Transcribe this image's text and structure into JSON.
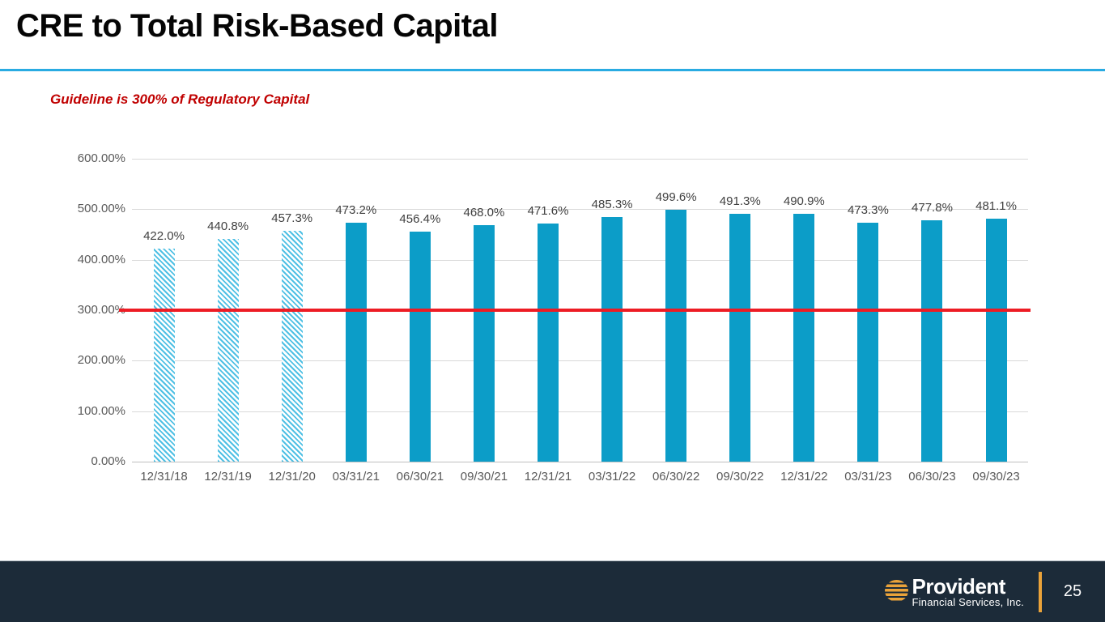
{
  "slide": {
    "title": "CRE to Total Risk-Based Capital",
    "guideline_note": "Guideline is 300% of Regulatory Capital",
    "page_number": "25"
  },
  "footer": {
    "logo_name": "Provident",
    "logo_subtitle": "Financial Services, Inc.",
    "bar_color": "#1c2b39",
    "accent_gold": "#eaa33a"
  },
  "chart_data": {
    "type": "bar",
    "title": "",
    "xlabel": "",
    "ylabel": "",
    "categories": [
      "12/31/18",
      "12/31/19",
      "12/31/20",
      "03/31/21",
      "06/30/21",
      "09/30/21",
      "12/31/21",
      "03/31/22",
      "06/30/22",
      "09/30/22",
      "12/31/22",
      "03/31/23",
      "06/30/23",
      "09/30/23"
    ],
    "values": [
      422.0,
      440.8,
      457.3,
      473.2,
      456.4,
      468.0,
      471.6,
      485.3,
      499.6,
      491.3,
      490.9,
      473.3,
      477.8,
      481.1
    ],
    "value_labels": [
      "422.0%",
      "440.8%",
      "457.3%",
      "473.2%",
      "456.4%",
      "468.0%",
      "471.6%",
      "485.3%",
      "499.6%",
      "491.3%",
      "490.9%",
      "473.3%",
      "477.8%",
      "481.1%"
    ],
    "y_ticks": [
      "600.00%",
      "500.00%",
      "400.00%",
      "300.00%",
      "200.00%",
      "100.00%",
      "0.00%"
    ],
    "ylim": [
      0,
      600
    ],
    "grid": true,
    "legend": false,
    "hatched_bar_count": 3,
    "guideline_value": 300,
    "bar_color": "#0c9dc8",
    "hatch_stripe_color": "#4fc0e4",
    "guideline_color": "#ed1c24",
    "separator_color": "#29abe2"
  }
}
